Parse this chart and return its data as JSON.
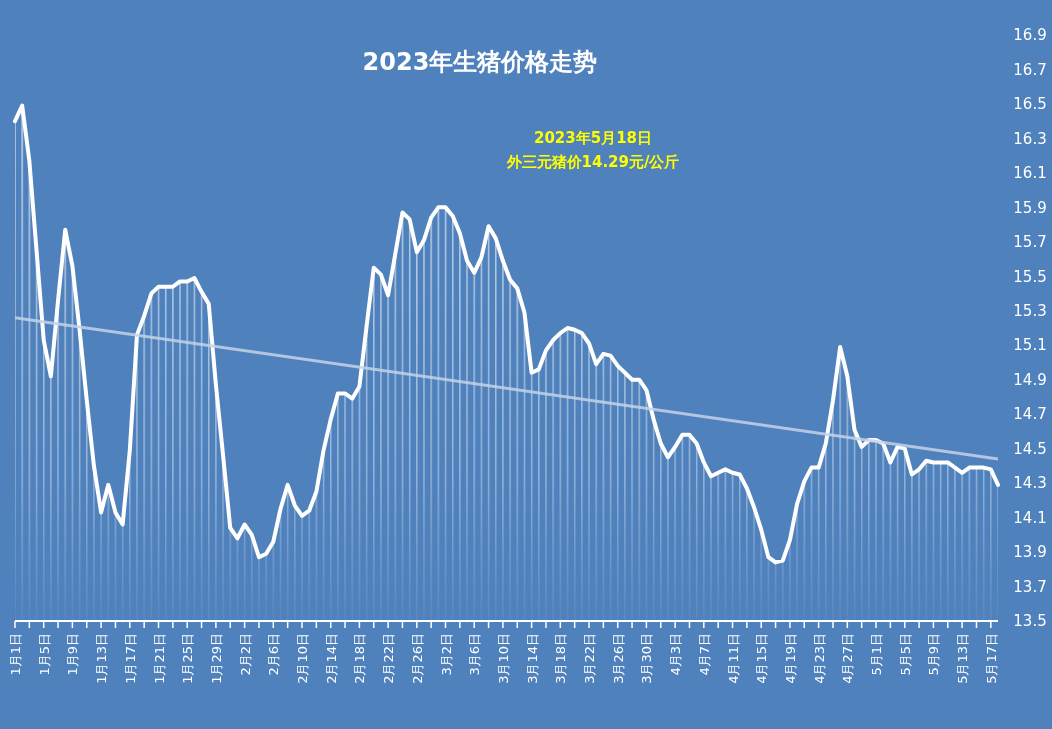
{
  "chart_data": {
    "type": "area",
    "title": "2023年生猪价格走势",
    "annotations": [
      "2023年5月18日",
      "外三元猪价14.29元/公斤"
    ],
    "x": [
      "2023-01-01",
      "2023-01-02",
      "2023-01-03",
      "2023-01-04",
      "2023-01-05",
      "2023-01-06",
      "2023-01-07",
      "2023-01-08",
      "2023-01-09",
      "2023-01-10",
      "2023-01-11",
      "2023-01-12",
      "2023-01-13",
      "2023-01-14",
      "2023-01-15",
      "2023-01-16",
      "2023-01-17",
      "2023-01-18",
      "2023-01-19",
      "2023-01-20",
      "2023-01-21",
      "2023-01-22",
      "2023-01-23",
      "2023-01-24",
      "2023-01-25",
      "2023-01-26",
      "2023-01-27",
      "2023-01-28",
      "2023-01-29",
      "2023-01-30",
      "2023-01-31",
      "2023-02-01",
      "2023-02-02",
      "2023-02-03",
      "2023-02-04",
      "2023-02-05",
      "2023-02-06",
      "2023-02-07",
      "2023-02-08",
      "2023-02-09",
      "2023-02-10",
      "2023-02-11",
      "2023-02-12",
      "2023-02-13",
      "2023-02-14",
      "2023-02-15",
      "2023-02-16",
      "2023-02-17",
      "2023-02-18",
      "2023-02-19",
      "2023-02-20",
      "2023-02-21",
      "2023-02-22",
      "2023-02-23",
      "2023-02-24",
      "2023-02-25",
      "2023-02-26",
      "2023-02-27",
      "2023-02-28",
      "2023-03-01",
      "2023-03-02",
      "2023-03-03",
      "2023-03-04",
      "2023-03-05",
      "2023-03-06",
      "2023-03-07",
      "2023-03-08",
      "2023-03-09",
      "2023-03-10",
      "2023-03-11",
      "2023-03-12",
      "2023-03-13",
      "2023-03-14",
      "2023-03-15",
      "2023-03-16",
      "2023-03-17",
      "2023-03-18",
      "2023-03-19",
      "2023-03-20",
      "2023-03-21",
      "2023-03-22",
      "2023-03-23",
      "2023-03-24",
      "2023-03-25",
      "2023-03-26",
      "2023-03-27",
      "2023-03-28",
      "2023-03-29",
      "2023-03-30",
      "2023-03-31",
      "2023-04-01",
      "2023-04-02",
      "2023-04-03",
      "2023-04-04",
      "2023-04-05",
      "2023-04-06",
      "2023-04-07",
      "2023-04-08",
      "2023-04-09",
      "2023-04-10",
      "2023-04-11",
      "2023-04-12",
      "2023-04-13",
      "2023-04-14",
      "2023-04-15",
      "2023-04-16",
      "2023-04-17",
      "2023-04-18",
      "2023-04-19",
      "2023-04-20",
      "2023-04-21",
      "2023-04-22",
      "2023-04-23",
      "2023-04-24",
      "2023-04-25",
      "2023-04-26",
      "2023-04-27",
      "2023-04-28",
      "2023-04-29",
      "2023-04-30",
      "2023-05-01",
      "2023-05-02",
      "2023-05-03",
      "2023-05-04",
      "2023-05-05",
      "2023-05-06",
      "2023-05-07",
      "2023-05-08",
      "2023-05-09",
      "2023-05-10",
      "2023-05-11",
      "2023-05-12",
      "2023-05-13",
      "2023-05-14",
      "2023-05-15",
      "2023-05-16",
      "2023-05-17",
      "2023-05-18"
    ],
    "series": [
      {
        "color": "#ffffff",
        "values": [
          16.4,
          16.49,
          16.17,
          15.65,
          15.13,
          14.92,
          15.36,
          15.77,
          15.56,
          15.19,
          14.78,
          14.4,
          14.13,
          14.29,
          14.13,
          14.06,
          14.49,
          15.16,
          15.27,
          15.4,
          15.44,
          15.44,
          15.44,
          15.47,
          15.47,
          15.49,
          15.41,
          15.34,
          14.87,
          14.46,
          14.04,
          13.98,
          14.06,
          14.0,
          13.87,
          13.89,
          13.96,
          14.15,
          14.29,
          14.17,
          14.11,
          14.14,
          14.25,
          14.49,
          14.67,
          14.82,
          14.82,
          14.79,
          14.86,
          15.21,
          15.55,
          15.51,
          15.39,
          15.63,
          15.87,
          15.83,
          15.64,
          15.71,
          15.84,
          15.9,
          15.9,
          15.85,
          15.75,
          15.59,
          15.52,
          15.61,
          15.79,
          15.72,
          15.59,
          15.48,
          15.43,
          15.29,
          14.94,
          14.96,
          15.07,
          15.13,
          15.17,
          15.2,
          15.19,
          15.17,
          15.11,
          14.99,
          15.05,
          15.04,
          14.98,
          14.94,
          14.9,
          14.9,
          14.84,
          14.67,
          14.53,
          14.45,
          14.51,
          14.58,
          14.58,
          14.53,
          14.42,
          14.34,
          14.36,
          14.38,
          14.36,
          14.35,
          14.27,
          14.16,
          14.03,
          13.87,
          13.84,
          13.85,
          13.97,
          14.18,
          14.31,
          14.39,
          14.39,
          14.53,
          14.78,
          15.09,
          14.92,
          14.61,
          14.51,
          14.55,
          14.55,
          14.53,
          14.42,
          14.51,
          14.5,
          14.35,
          14.38,
          14.43,
          14.42,
          14.42,
          14.42,
          14.39,
          14.36,
          14.39,
          14.39,
          14.39,
          14.38,
          14.29
        ]
      },
      {
        "type": "line",
        "color": "#c3d2e8",
        "x": [
          "2023-01-01",
          "2023-05-18"
        ],
        "values": [
          15.26,
          14.44
        ]
      }
    ],
    "xlim": [
      "2023-01-01",
      "2023-05-18"
    ],
    "xticks": [
      {
        "value": "2023-01-01",
        "label": "1月1日"
      },
      {
        "value": "2023-01-03",
        "label": null
      },
      {
        "value": "2023-01-05",
        "label": "1月5日"
      },
      {
        "value": "2023-01-07",
        "label": null
      },
      {
        "value": "2023-01-09",
        "label": "1月9日"
      },
      {
        "value": "2023-01-11",
        "label": null
      },
      {
        "value": "2023-01-13",
        "label": "1月13日"
      },
      {
        "value": "2023-01-15",
        "label": null
      },
      {
        "value": "2023-01-17",
        "label": "1月17日"
      },
      {
        "value": "2023-01-19",
        "label": null
      },
      {
        "value": "2023-01-21",
        "label": "1月21日"
      },
      {
        "value": "2023-01-23",
        "label": null
      },
      {
        "value": "2023-01-25",
        "label": "1月25日"
      },
      {
        "value": "2023-01-27",
        "label": null
      },
      {
        "value": "2023-01-29",
        "label": "1月29日"
      },
      {
        "value": "2023-01-31",
        "label": null
      },
      {
        "value": "2023-02-02",
        "label": "2月2日"
      },
      {
        "value": "2023-02-04",
        "label": null
      },
      {
        "value": "2023-02-06",
        "label": "2月6日"
      },
      {
        "value": "2023-02-08",
        "label": null
      },
      {
        "value": "2023-02-10",
        "label": "2月10日"
      },
      {
        "value": "2023-02-12",
        "label": null
      },
      {
        "value": "2023-02-14",
        "label": "2月14日"
      },
      {
        "value": "2023-02-16",
        "label": null
      },
      {
        "value": "2023-02-18",
        "label": "2月18日"
      },
      {
        "value": "2023-02-20",
        "label": null
      },
      {
        "value": "2023-02-22",
        "label": "2月22日"
      },
      {
        "value": "2023-02-24",
        "label": null
      },
      {
        "value": "2023-02-26",
        "label": "2月26日"
      },
      {
        "value": "2023-02-28",
        "label": null
      },
      {
        "value": "2023-03-02",
        "label": "3月2日"
      },
      {
        "value": "2023-03-04",
        "label": null
      },
      {
        "value": "2023-03-06",
        "label": "3月6日"
      },
      {
        "value": "2023-03-08",
        "label": null
      },
      {
        "value": "2023-03-10",
        "label": "3月10日"
      },
      {
        "value": "2023-03-12",
        "label": null
      },
      {
        "value": "2023-03-14",
        "label": "3月14日"
      },
      {
        "value": "2023-03-16",
        "label": null
      },
      {
        "value": "2023-03-18",
        "label": "3月18日"
      },
      {
        "value": "2023-03-20",
        "label": null
      },
      {
        "value": "2023-03-22",
        "label": "3月22日"
      },
      {
        "value": "2023-03-24",
        "label": null
      },
      {
        "value": "2023-03-26",
        "label": "3月26日"
      },
      {
        "value": "2023-03-28",
        "label": null
      },
      {
        "value": "2023-03-30",
        "label": "3月30日"
      },
      {
        "value": "2023-04-01",
        "label": null
      },
      {
        "value": "2023-04-03",
        "label": "4月3日"
      },
      {
        "value": "2023-04-05",
        "label": null
      },
      {
        "value": "2023-04-07",
        "label": "4月7日"
      },
      {
        "value": "2023-04-09",
        "label": null
      },
      {
        "value": "2023-04-11",
        "label": "4月11日"
      },
      {
        "value": "2023-04-13",
        "label": null
      },
      {
        "value": "2023-04-15",
        "label": "4月15日"
      },
      {
        "value": "2023-04-17",
        "label": null
      },
      {
        "value": "2023-04-19",
        "label": "4月19日"
      },
      {
        "value": "2023-04-21",
        "label": null
      },
      {
        "value": "2023-04-23",
        "label": "4月23日"
      },
      {
        "value": "2023-04-25",
        "label": null
      },
      {
        "value": "2023-04-27",
        "label": "4月27日"
      },
      {
        "value": "2023-04-29",
        "label": null
      },
      {
        "value": "2023-05-01",
        "label": "5月1日"
      },
      {
        "value": "2023-05-03",
        "label": null
      },
      {
        "value": "2023-05-05",
        "label": "5月5日"
      },
      {
        "value": "2023-05-07",
        "label": null
      },
      {
        "value": "2023-05-09",
        "label": "5月9日"
      },
      {
        "value": "2023-05-11",
        "label": null
      },
      {
        "value": "2023-05-13",
        "label": "5月13日"
      },
      {
        "value": "2023-05-15",
        "label": null
      },
      {
        "value": "2023-05-17",
        "label": "5月17日"
      }
    ],
    "ylim": [
      13.5,
      16.9
    ],
    "yticks": [
      13.5,
      13.7,
      13.9,
      14.1,
      14.3,
      14.5,
      14.7,
      14.9,
      15.1,
      15.3,
      15.5,
      15.7,
      15.9,
      16.1,
      16.3,
      16.5,
      16.7,
      16.9
    ]
  }
}
